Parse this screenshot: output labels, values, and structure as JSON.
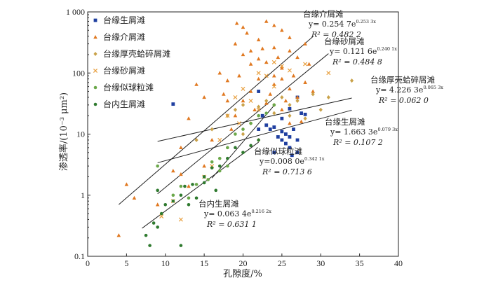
{
  "chart_data": {
    "type": "scatter",
    "xlabel": "孔隙度/%",
    "ylabel": "渗透率/(10⁻³ μm²)",
    "xlim": [
      0,
      40
    ],
    "ylim": [
      0.1,
      1000
    ],
    "yscale": "log",
    "x_ticks": [
      "0",
      "5",
      "10",
      "15",
      "20",
      "25",
      "30",
      "35",
      "40"
    ],
    "y_ticks": [
      "0.1",
      "1",
      "10",
      "100",
      "1 000"
    ],
    "legend_position": "top-left",
    "series": [
      {
        "name": "台缘生屑滩",
        "color": "#1f3fa0",
        "marker": "square",
        "points": [
          [
            11,
            31
          ],
          [
            22,
            50
          ],
          [
            24,
            13
          ],
          [
            24.5,
            9
          ],
          [
            25,
            18
          ],
          [
            25.5,
            10
          ],
          [
            25.5,
            7
          ],
          [
            26,
            6
          ],
          [
            26,
            9
          ],
          [
            26.5,
            12
          ],
          [
            27,
            8
          ],
          [
            27.5,
            22
          ],
          [
            27,
            5
          ],
          [
            23,
            14
          ],
          [
            22.5,
            20
          ],
          [
            26,
            26
          ],
          [
            25,
            8
          ],
          [
            24,
            5
          ],
          [
            26.3,
            4.5
          ],
          [
            28,
            21
          ],
          [
            27,
            40
          ],
          [
            25,
            11
          ],
          [
            23.5,
            12
          ],
          [
            22,
            12
          ]
        ],
        "fit": {
          "label_title": "台缘生屑滩",
          "equation": "y= 1.663 3e^(0.079 3x)",
          "r2": "R² = 0.107 2",
          "x_range": [
            9,
            34
          ]
        }
      },
      {
        "name": "台缘介屑滩",
        "color": "#e07820",
        "marker": "triangle",
        "points": [
          [
            4,
            0.22
          ],
          [
            5,
            1.5
          ],
          [
            6,
            0.9
          ],
          [
            9,
            0.7
          ],
          [
            11,
            2.5
          ],
          [
            12,
            6
          ],
          [
            13,
            18
          ],
          [
            14,
            65
          ],
          [
            15,
            40
          ],
          [
            16,
            8
          ],
          [
            17,
            100
          ],
          [
            18,
            35
          ],
          [
            18.5,
            12
          ],
          [
            19,
            300
          ],
          [
            19.2,
            650
          ],
          [
            19.5,
            90
          ],
          [
            20,
            560
          ],
          [
            20,
            200
          ],
          [
            20.5,
            450
          ],
          [
            21,
            140
          ],
          [
            21,
            50
          ],
          [
            21.5,
            25
          ],
          [
            22,
            350
          ],
          [
            22,
            80
          ],
          [
            22.5,
            250
          ],
          [
            23,
            700
          ],
          [
            23,
            150
          ],
          [
            23.5,
            45
          ],
          [
            24,
            600
          ],
          [
            24,
            260
          ],
          [
            24,
            65
          ],
          [
            24.5,
            180
          ],
          [
            25,
            500
          ],
          [
            25,
            120
          ],
          [
            25,
            80
          ],
          [
            25.5,
            35
          ],
          [
            26,
            230
          ],
          [
            26,
            55
          ],
          [
            26.5,
            90
          ],
          [
            27,
            180
          ],
          [
            27,
            40
          ],
          [
            27.5,
            16
          ],
          [
            28,
            300
          ],
          [
            28,
            70
          ],
          [
            28.5,
            140
          ],
          [
            29,
            50
          ],
          [
            22,
            170
          ],
          [
            24,
            90
          ],
          [
            20,
            35
          ],
          [
            26,
            380
          ],
          [
            18,
            75
          ],
          [
            17.5,
            45
          ],
          [
            21,
            230
          ],
          [
            23,
            32
          ],
          [
            25,
            25
          ],
          [
            26,
            15
          ],
          [
            12,
            2.2
          ],
          [
            13,
            1.4
          ],
          [
            15,
            3
          ],
          [
            19,
            20
          ]
        ],
        "fit": {
          "label_title": "台缘介屑滩",
          "equation": "y= 0.254 7e^(0.253 3x)",
          "r2": "R² = 0.482 2",
          "x_range": [
            4,
            29
          ]
        }
      },
      {
        "name": "台缘厚壳蛤碎屑滩",
        "color": "#c9a24a",
        "marker": "diamond",
        "points": [
          [
            14,
            8
          ],
          [
            16,
            12
          ],
          [
            18,
            20
          ],
          [
            19,
            25
          ],
          [
            20,
            30
          ],
          [
            21,
            15
          ],
          [
            22,
            28
          ],
          [
            23,
            35
          ],
          [
            24,
            22
          ],
          [
            25,
            40
          ],
          [
            26,
            30
          ],
          [
            27,
            35
          ],
          [
            28,
            18
          ],
          [
            29,
            45
          ],
          [
            30,
            25
          ],
          [
            31,
            40
          ],
          [
            34,
            75
          ],
          [
            20,
            10
          ],
          [
            22,
            8
          ],
          [
            24,
            30
          ],
          [
            26,
            20
          ]
        ],
        "fit": {
          "label_title": "台缘厚壳蛤碎屑滩",
          "equation": "y= 4.226 3e^(0.065 3x)",
          "r2": "R² = 0.062 0",
          "x_range": [
            9,
            34
          ]
        }
      },
      {
        "name": "台缘砂屑滩",
        "color": "#e8a040",
        "marker": "x",
        "points": [
          [
            9.5,
            0.45
          ],
          [
            11,
            0.8
          ],
          [
            12,
            0.4
          ],
          [
            15,
            2
          ],
          [
            17,
            8
          ],
          [
            18,
            20
          ],
          [
            19,
            40
          ],
          [
            20,
            55
          ],
          [
            21,
            35
          ],
          [
            22,
            100
          ],
          [
            23,
            90
          ],
          [
            24,
            150
          ],
          [
            25,
            130
          ],
          [
            26,
            110
          ],
          [
            28,
            140
          ],
          [
            31,
            100
          ],
          [
            19.5,
            15
          ],
          [
            22,
            25
          ],
          [
            24,
            60
          ],
          [
            16,
            3
          ]
        ],
        "fit": {
          "label_title": "台缘砂屑滩",
          "equation": "y= 0.121 6e^(0.240 1x)",
          "r2": "R² = 0.484 8",
          "x_range": [
            9,
            31
          ]
        }
      },
      {
        "name": "台缘似球粒滩",
        "color": "#6ba84a",
        "marker": "circle",
        "points": [
          [
            9,
            3
          ],
          [
            11,
            1
          ],
          [
            12,
            1.4
          ],
          [
            13,
            0.9
          ],
          [
            14,
            1.5
          ],
          [
            15,
            2
          ],
          [
            16,
            3.5
          ],
          [
            17,
            4
          ],
          [
            18,
            6
          ],
          [
            19,
            10
          ],
          [
            20,
            12
          ],
          [
            21,
            15
          ],
          [
            22,
            20
          ],
          [
            23,
            22
          ],
          [
            24,
            30
          ],
          [
            18,
            3
          ],
          [
            20,
            5
          ],
          [
            15.5,
            1.8
          ],
          [
            17,
            2.5
          ]
        ],
        "fit": {
          "label_title": "台缘似球粒滩",
          "equation": "y=0.008 0e^(0.342 1x)",
          "r2": "R² = 0.713 6",
          "x_range": [
            16,
            24
          ]
        }
      },
      {
        "name": "台内生屑滩",
        "color": "#2f7a2f",
        "marker": "circle",
        "points": [
          [
            8,
            0.15
          ],
          [
            8.5,
            0.35
          ],
          [
            9,
            1.2
          ],
          [
            9.5,
            0.5
          ],
          [
            10,
            0.7
          ],
          [
            11,
            0.8
          ],
          [
            12,
            0.15
          ],
          [
            12,
            1
          ],
          [
            12.5,
            1.4
          ],
          [
            13,
            0.7
          ],
          [
            13.5,
            1.5
          ],
          [
            14,
            0.9
          ],
          [
            15,
            1.6
          ],
          [
            15,
            2
          ],
          [
            16,
            2.8
          ],
          [
            16.5,
            1.2
          ],
          [
            17,
            3
          ],
          [
            18,
            4
          ],
          [
            19,
            6
          ],
          [
            20,
            5
          ],
          [
            21,
            6.5
          ],
          [
            22,
            8
          ],
          [
            9,
            0.3
          ],
          [
            7.5,
            0.22
          ]
        ],
        "fit": {
          "label_title": "台内生屑滩",
          "equation": "y= 0.063 4e^(0.216 2x)",
          "r2": "R² = 0.631 1",
          "x_range": [
            7,
            22
          ]
        }
      }
    ]
  }
}
